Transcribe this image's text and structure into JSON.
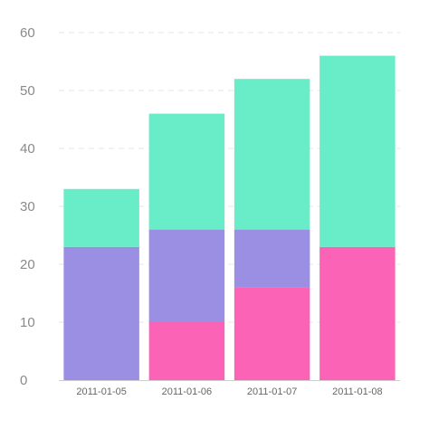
{
  "chart_data": {
    "type": "bar",
    "stacked": true,
    "title": "",
    "xlabel": "",
    "ylabel": "",
    "categories": [
      "2011-01-05",
      "2011-01-06",
      "2011-01-07",
      "2011-01-08"
    ],
    "series": [
      {
        "values": [
          0,
          10,
          16,
          23
        ],
        "color": "#fb64b6"
      },
      {
        "values": [
          23,
          16,
          10,
          0
        ],
        "color": "#9b8fe3"
      },
      {
        "values": [
          10,
          20,
          26,
          33
        ],
        "color": "#69ecc8"
      }
    ],
    "ylim": [
      0,
      60
    ],
    "yticks": [
      0,
      10,
      20,
      30,
      40,
      50,
      60
    ],
    "grid": true,
    "legend": "none"
  }
}
